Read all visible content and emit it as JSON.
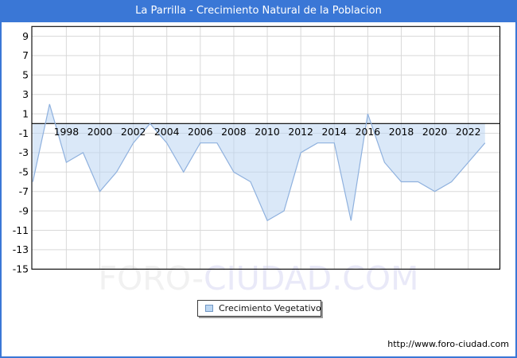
{
  "window": {
    "title": "La Parrilla - Crecimiento Natural de la Poblacion"
  },
  "legend": {
    "label": "Crecimiento Vegetativo"
  },
  "watermark": {
    "part1": "FORO-",
    "part2": "CIUDAD.COM"
  },
  "footer": {
    "url": "http://www.foro-ciudad.com"
  },
  "colors": {
    "titlebar_bg": "#3a77d6",
    "frame_border": "#3a77d6",
    "title_text": "#ffffff",
    "gridline": "#d9d9d9",
    "axis": "#000000",
    "line": "#8fb1de",
    "area_fill": "rgba(187,214,243,0.55)",
    "watermark_gray": "#f1f1f1",
    "watermark_lavender": "#e9e9f8"
  },
  "chart_data": {
    "type": "area",
    "title": "La Parrilla - Crecimiento Natural de la Poblacion",
    "xlabel": "",
    "ylabel": "",
    "baseline": 0,
    "grid": true,
    "legend_position": "bottom-center",
    "xlim": [
      1995.94,
      2023.89
    ],
    "ylim": [
      -15,
      10
    ],
    "yticks": [
      9,
      7,
      5,
      3,
      1,
      -1,
      -3,
      -5,
      -7,
      -9,
      -11,
      -13,
      -15
    ],
    "xticks": [
      1998,
      2000,
      2002,
      2004,
      2006,
      2008,
      2010,
      2012,
      2014,
      2016,
      2018,
      2020,
      2022
    ],
    "series": [
      {
        "name": "Crecimiento Vegetativo",
        "x": [
          1996,
          1997,
          1998,
          1999,
          2000,
          2001,
          2002,
          2003,
          2004,
          2005,
          2006,
          2007,
          2008,
          2009,
          2010,
          2011,
          2012,
          2013,
          2014,
          2015,
          2016,
          2017,
          2018,
          2019,
          2020,
          2021,
          2022,
          2023
        ],
        "values": [
          -6,
          2,
          -4,
          -3,
          -7,
          -5,
          -2,
          0,
          -2,
          -5,
          -2,
          -2,
          -5,
          -6,
          -10,
          -9,
          -3,
          -2,
          -2,
          -10,
          1,
          -4,
          -6,
          -6,
          -7,
          -6,
          -4,
          -2
        ]
      }
    ]
  }
}
